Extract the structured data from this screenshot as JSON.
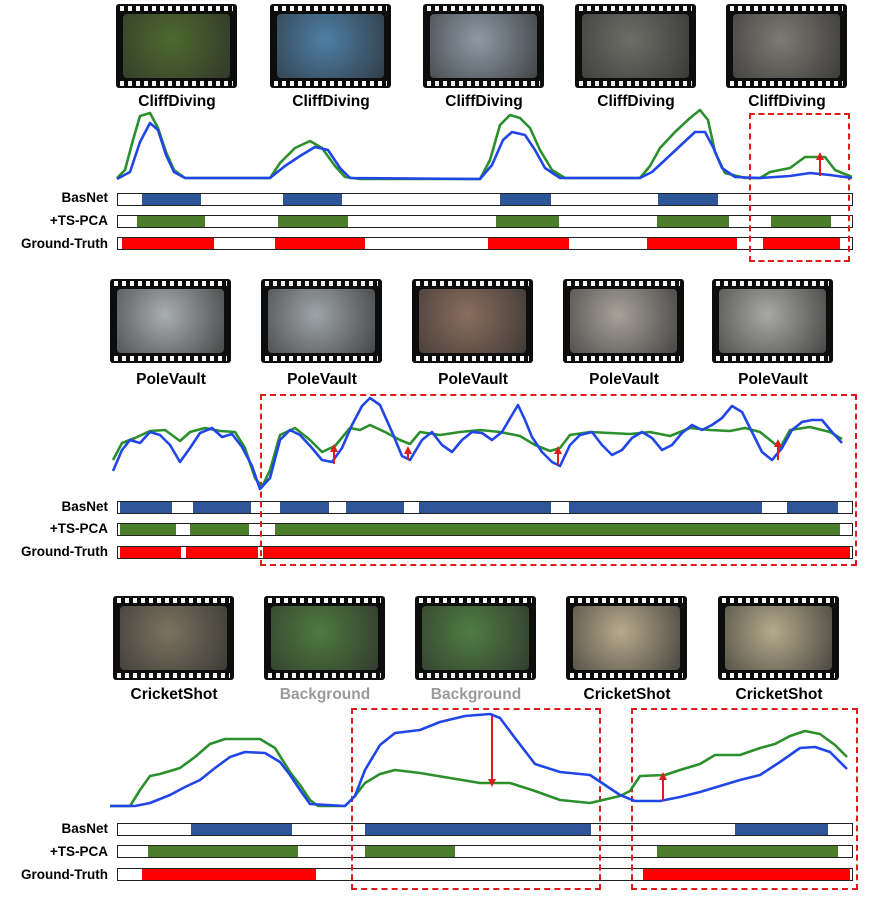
{
  "colors": {
    "basnet": "#2e5597",
    "tspca": "#4b7d2b",
    "ground_truth": "#ff0000",
    "green_curve": "#2b8f2b",
    "blue_curve": "#2046e8",
    "annotation": "#e01b1b"
  },
  "row_labels": {
    "basnet": "BasNet",
    "tspca": "+TS-PCA",
    "ground_truth": "Ground-Truth"
  },
  "panels": [
    {
      "id": "cliff",
      "captions": [
        "CliffDiving",
        "CliffDiving",
        "CliffDiving",
        "CliffDiving",
        "CliffDiving"
      ],
      "caption_kinds": [
        "action",
        "action",
        "action",
        "action",
        "action"
      ],
      "scene_tones": [
        "#4e6a2e",
        "#4d7fa6",
        "#8e9aa6",
        "#6e6e68",
        "#7c7a72"
      ],
      "green_curve": [
        [
          117,
          178
        ],
        [
          125,
          170
        ],
        [
          133,
          140
        ],
        [
          140,
          116
        ],
        [
          150,
          113
        ],
        [
          158,
          128
        ],
        [
          166,
          152
        ],
        [
          174,
          170
        ],
        [
          185,
          178
        ],
        [
          270,
          178
        ],
        [
          280,
          163
        ],
        [
          295,
          148
        ],
        [
          310,
          141
        ],
        [
          322,
          148
        ],
        [
          335,
          166
        ],
        [
          345,
          177
        ],
        [
          360,
          179
        ],
        [
          480,
          179
        ],
        [
          490,
          160
        ],
        [
          500,
          125
        ],
        [
          510,
          115
        ],
        [
          520,
          118
        ],
        [
          530,
          128
        ],
        [
          540,
          150
        ],
        [
          552,
          170
        ],
        [
          565,
          178
        ],
        [
          640,
          178
        ],
        [
          650,
          166
        ],
        [
          660,
          148
        ],
        [
          675,
          132
        ],
        [
          690,
          118
        ],
        [
          700,
          110
        ],
        [
          708,
          120
        ],
        [
          715,
          152
        ],
        [
          725,
          173
        ],
        [
          745,
          178
        ],
        [
          760,
          178
        ],
        [
          770,
          172
        ],
        [
          790,
          168
        ],
        [
          805,
          157
        ],
        [
          825,
          157
        ],
        [
          835,
          170
        ],
        [
          852,
          177
        ]
      ],
      "blue_curve": [
        [
          117,
          179
        ],
        [
          130,
          172
        ],
        [
          140,
          142
        ],
        [
          150,
          123
        ],
        [
          158,
          130
        ],
        [
          166,
          155
        ],
        [
          174,
          172
        ],
        [
          185,
          178
        ],
        [
          270,
          178
        ],
        [
          285,
          166
        ],
        [
          300,
          156
        ],
        [
          315,
          147
        ],
        [
          328,
          150
        ],
        [
          340,
          168
        ],
        [
          350,
          178
        ],
        [
          480,
          179
        ],
        [
          492,
          165
        ],
        [
          503,
          140
        ],
        [
          512,
          132
        ],
        [
          525,
          135
        ],
        [
          535,
          150
        ],
        [
          545,
          168
        ],
        [
          560,
          178
        ],
        [
          640,
          178
        ],
        [
          652,
          172
        ],
        [
          665,
          160
        ],
        [
          680,
          146
        ],
        [
          695,
          132
        ],
        [
          705,
          132
        ],
        [
          713,
          147
        ],
        [
          722,
          168
        ],
        [
          735,
          177
        ],
        [
          760,
          178
        ],
        [
          790,
          176
        ],
        [
          810,
          173
        ],
        [
          830,
          175
        ],
        [
          852,
          178
        ]
      ],
      "bars": {
        "basnet": [
          [
            24,
            59
          ],
          [
            165,
            59
          ],
          [
            382,
            51
          ],
          [
            540,
            60
          ]
        ],
        "tspca": [
          [
            19,
            68
          ],
          [
            160,
            70
          ],
          [
            378,
            63
          ],
          [
            539,
            72
          ],
          [
            653,
            60
          ]
        ],
        "ground_truth": [
          [
            4,
            92
          ],
          [
            157,
            90
          ],
          [
            370,
            81
          ],
          [
            529,
            90
          ],
          [
            645,
            77
          ]
        ]
      },
      "annotation_arrows": [
        [
          820,
          176,
          820,
          156
        ]
      ]
    },
    {
      "id": "pole",
      "captions": [
        "PoleVault",
        "PoleVault",
        "PoleVault",
        "PoleVault",
        "PoleVault"
      ],
      "caption_kinds": [
        "action",
        "action",
        "action",
        "action",
        "action"
      ],
      "scene_tones": [
        "#a9aeb0",
        "#9ea4a8",
        "#8a6e5e",
        "#a7a19a",
        "#a8a8a6"
      ],
      "green_curve": [
        [
          113,
          460
        ],
        [
          122,
          443
        ],
        [
          135,
          438
        ],
        [
          150,
          431
        ],
        [
          165,
          430
        ],
        [
          180,
          441
        ],
        [
          190,
          432
        ],
        [
          205,
          428
        ],
        [
          220,
          431
        ],
        [
          235,
          432
        ],
        [
          245,
          448
        ],
        [
          255,
          478
        ],
        [
          262,
          487
        ],
        [
          270,
          470
        ],
        [
          280,
          435
        ],
        [
          295,
          428
        ],
        [
          310,
          440
        ],
        [
          322,
          452
        ],
        [
          335,
          446
        ],
        [
          350,
          428
        ],
        [
          360,
          430
        ],
        [
          370,
          425
        ],
        [
          385,
          432
        ],
        [
          400,
          440
        ],
        [
          410,
          444
        ],
        [
          420,
          432
        ],
        [
          440,
          435
        ],
        [
          460,
          432
        ],
        [
          480,
          430
        ],
        [
          500,
          432
        ],
        [
          520,
          436
        ],
        [
          535,
          445
        ],
        [
          550,
          451
        ],
        [
          560,
          448
        ],
        [
          570,
          435
        ],
        [
          590,
          432
        ],
        [
          610,
          433
        ],
        [
          630,
          434
        ],
        [
          650,
          432
        ],
        [
          670,
          436
        ],
        [
          690,
          428
        ],
        [
          710,
          430
        ],
        [
          730,
          431
        ],
        [
          745,
          428
        ],
        [
          760,
          432
        ],
        [
          770,
          440
        ],
        [
          780,
          448
        ],
        [
          790,
          430
        ],
        [
          810,
          427
        ],
        [
          830,
          432
        ],
        [
          842,
          439
        ]
      ],
      "blue_curve": [
        [
          113,
          471
        ],
        [
          122,
          450
        ],
        [
          130,
          440
        ],
        [
          140,
          443
        ],
        [
          150,
          432
        ],
        [
          160,
          435
        ],
        [
          170,
          445
        ],
        [
          180,
          462
        ],
        [
          190,
          448
        ],
        [
          200,
          433
        ],
        [
          212,
          428
        ],
        [
          222,
          437
        ],
        [
          232,
          434
        ],
        [
          242,
          447
        ],
        [
          252,
          466
        ],
        [
          260,
          489
        ],
        [
          270,
          478
        ],
        [
          280,
          440
        ],
        [
          290,
          430
        ],
        [
          300,
          435
        ],
        [
          312,
          448
        ],
        [
          322,
          460
        ],
        [
          332,
          462
        ],
        [
          342,
          448
        ],
        [
          352,
          425
        ],
        [
          362,
          406
        ],
        [
          370,
          398
        ],
        [
          380,
          405
        ],
        [
          392,
          432
        ],
        [
          402,
          456
        ],
        [
          410,
          460
        ],
        [
          422,
          440
        ],
        [
          432,
          432
        ],
        [
          442,
          445
        ],
        [
          452,
          452
        ],
        [
          462,
          440
        ],
        [
          472,
          432
        ],
        [
          482,
          433
        ],
        [
          492,
          440
        ],
        [
          502,
          432
        ],
        [
          512,
          415
        ],
        [
          518,
          405
        ],
        [
          525,
          420
        ],
        [
          532,
          437
        ],
        [
          542,
          452
        ],
        [
          552,
          462
        ],
        [
          560,
          466
        ],
        [
          570,
          445
        ],
        [
          580,
          435
        ],
        [
          592,
          432
        ],
        [
          602,
          445
        ],
        [
          612,
          455
        ],
        [
          622,
          450
        ],
        [
          632,
          438
        ],
        [
          642,
          432
        ],
        [
          652,
          438
        ],
        [
          662,
          450
        ],
        [
          672,
          445
        ],
        [
          682,
          433
        ],
        [
          692,
          425
        ],
        [
          702,
          430
        ],
        [
          712,
          425
        ],
        [
          722,
          418
        ],
        [
          732,
          406
        ],
        [
          742,
          412
        ],
        [
          752,
          432
        ],
        [
          762,
          452
        ],
        [
          772,
          460
        ],
        [
          782,
          448
        ],
        [
          792,
          430
        ],
        [
          802,
          422
        ],
        [
          812,
          420
        ],
        [
          822,
          420
        ],
        [
          832,
          432
        ],
        [
          842,
          443
        ]
      ],
      "bars": {
        "basnet": [
          [
            2,
            52
          ],
          [
            75,
            58
          ],
          [
            162,
            49
          ],
          [
            228,
            58
          ],
          [
            301,
            132
          ],
          [
            451,
            193
          ],
          [
            669,
            51
          ]
        ],
        "tspca": [
          [
            2,
            56
          ],
          [
            72,
            59
          ],
          [
            157,
            565
          ]
        ],
        "ground_truth": [
          [
            2,
            61
          ],
          [
            68,
            72
          ],
          [
            145,
            587
          ]
        ]
      },
      "annotation_arrows": [
        [
          334,
          464,
          334,
          448
        ],
        [
          408,
          460,
          408,
          450
        ],
        [
          558,
          465,
          558,
          450
        ],
        [
          778,
          460,
          778,
          443
        ]
      ]
    },
    {
      "id": "cricket",
      "captions": [
        "CricketShot",
        "Background",
        "Background",
        "CricketShot",
        "CricketShot"
      ],
      "caption_kinds": [
        "action",
        "background",
        "background",
        "action",
        "action"
      ],
      "scene_tones": [
        "#7b7360",
        "#4e7a3e",
        "#4f7d42",
        "#b7aa8c",
        "#b5aa8b"
      ],
      "green_curve": [
        [
          110,
          806
        ],
        [
          130,
          806
        ],
        [
          140,
          790
        ],
        [
          150,
          776
        ],
        [
          160,
          774
        ],
        [
          180,
          768
        ],
        [
          195,
          757
        ],
        [
          210,
          744
        ],
        [
          225,
          739
        ],
        [
          260,
          739
        ],
        [
          275,
          748
        ],
        [
          290,
          772
        ],
        [
          300,
          785
        ],
        [
          310,
          800
        ],
        [
          318,
          806
        ],
        [
          345,
          806
        ],
        [
          355,
          796
        ],
        [
          365,
          783
        ],
        [
          380,
          774
        ],
        [
          395,
          770
        ],
        [
          420,
          773
        ],
        [
          450,
          778
        ],
        [
          480,
          783
        ],
        [
          510,
          783
        ],
        [
          535,
          791
        ],
        [
          560,
          800
        ],
        [
          590,
          803
        ],
        [
          620,
          796
        ],
        [
          630,
          791
        ],
        [
          640,
          776
        ],
        [
          665,
          775
        ],
        [
          680,
          770
        ],
        [
          700,
          764
        ],
        [
          715,
          755
        ],
        [
          740,
          755
        ],
        [
          760,
          748
        ],
        [
          775,
          744
        ],
        [
          790,
          736
        ],
        [
          805,
          731
        ],
        [
          820,
          734
        ],
        [
          835,
          745
        ],
        [
          847,
          757
        ]
      ],
      "blue_curve": [
        [
          110,
          806
        ],
        [
          135,
          806
        ],
        [
          150,
          803
        ],
        [
          170,
          795
        ],
        [
          185,
          787
        ],
        [
          200,
          780
        ],
        [
          215,
          768
        ],
        [
          230,
          757
        ],
        [
          245,
          752
        ],
        [
          265,
          753
        ],
        [
          280,
          762
        ],
        [
          290,
          775
        ],
        [
          300,
          790
        ],
        [
          310,
          804
        ],
        [
          345,
          806
        ],
        [
          355,
          796
        ],
        [
          365,
          770
        ],
        [
          380,
          745
        ],
        [
          395,
          733
        ],
        [
          420,
          730
        ],
        [
          440,
          722
        ],
        [
          465,
          716
        ],
        [
          490,
          714
        ],
        [
          500,
          718
        ],
        [
          515,
          738
        ],
        [
          535,
          764
        ],
        [
          560,
          772
        ],
        [
          590,
          775
        ],
        [
          605,
          785
        ],
        [
          620,
          795
        ],
        [
          635,
          801
        ],
        [
          660,
          801
        ],
        [
          680,
          797
        ],
        [
          700,
          792
        ],
        [
          720,
          786
        ],
        [
          740,
          780
        ],
        [
          760,
          775
        ],
        [
          780,
          762
        ],
        [
          800,
          748
        ],
        [
          815,
          747
        ],
        [
          830,
          752
        ],
        [
          847,
          769
        ]
      ],
      "bars": {
        "basnet": [
          [
            73,
            101
          ],
          [
            247,
            226
          ],
          [
            617,
            93
          ]
        ],
        "tspca": [
          [
            30,
            150
          ],
          [
            247,
            90
          ],
          [
            539,
            181
          ]
        ],
        "ground_truth": [
          [
            24,
            174
          ],
          [
            525,
            207
          ]
        ]
      },
      "annotation_arrows": [
        [
          492,
          716,
          492,
          783
        ],
        [
          663,
          801,
          663,
          776
        ]
      ]
    }
  ]
}
